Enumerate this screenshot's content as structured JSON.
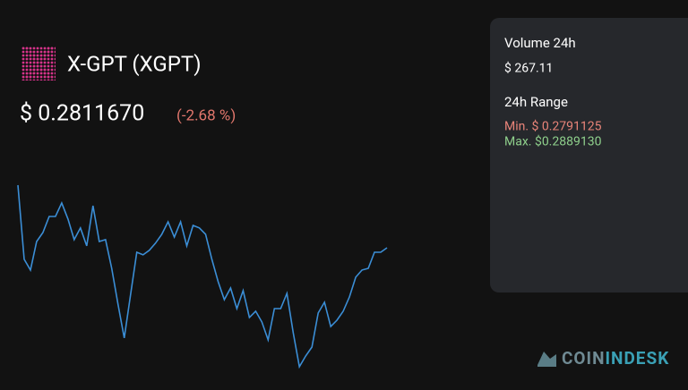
{
  "header": {
    "title": "X-GPT (XGPT)"
  },
  "price": {
    "value": "$ 0.2811670",
    "change": "(-2.68 %)"
  },
  "stats": {
    "volume_label": "Volume 24h",
    "volume": "$ 267.11",
    "range_label": "24h Range",
    "min": "Min. $ 0.2791125",
    "max": "Max. $0.2889130"
  },
  "logo": {
    "parts": [
      "COIN",
      "INDESK"
    ]
  },
  "chart_data": {
    "type": "line",
    "color": "#3b8ed6",
    "values": [
      0.28891,
      0.28491,
      0.28433,
      0.28587,
      0.28635,
      0.28722,
      0.28722,
      0.28795,
      0.28708,
      0.28597,
      0.2866,
      0.28563,
      0.2878,
      0.28587,
      0.28597,
      0.28442,
      0.28249,
      0.28066,
      0.28298,
      0.28529,
      0.28515,
      0.28539,
      0.28578,
      0.28626,
      0.28693,
      0.28611,
      0.28693,
      0.28563,
      0.28674,
      0.2866,
      0.28626,
      0.28491,
      0.2837,
      0.28273,
      0.28336,
      0.28225,
      0.28322,
      0.28177,
      0.28211,
      0.28153,
      0.28056,
      0.28225,
      0.28225,
      0.28307,
      0.28095,
      0.27911,
      0.27969,
      0.28017,
      0.28201,
      0.28259,
      0.28128,
      0.28162,
      0.28211,
      0.28288,
      0.28394,
      0.28433,
      0.28442,
      0.28529,
      0.28529,
      0.28553
    ]
  }
}
